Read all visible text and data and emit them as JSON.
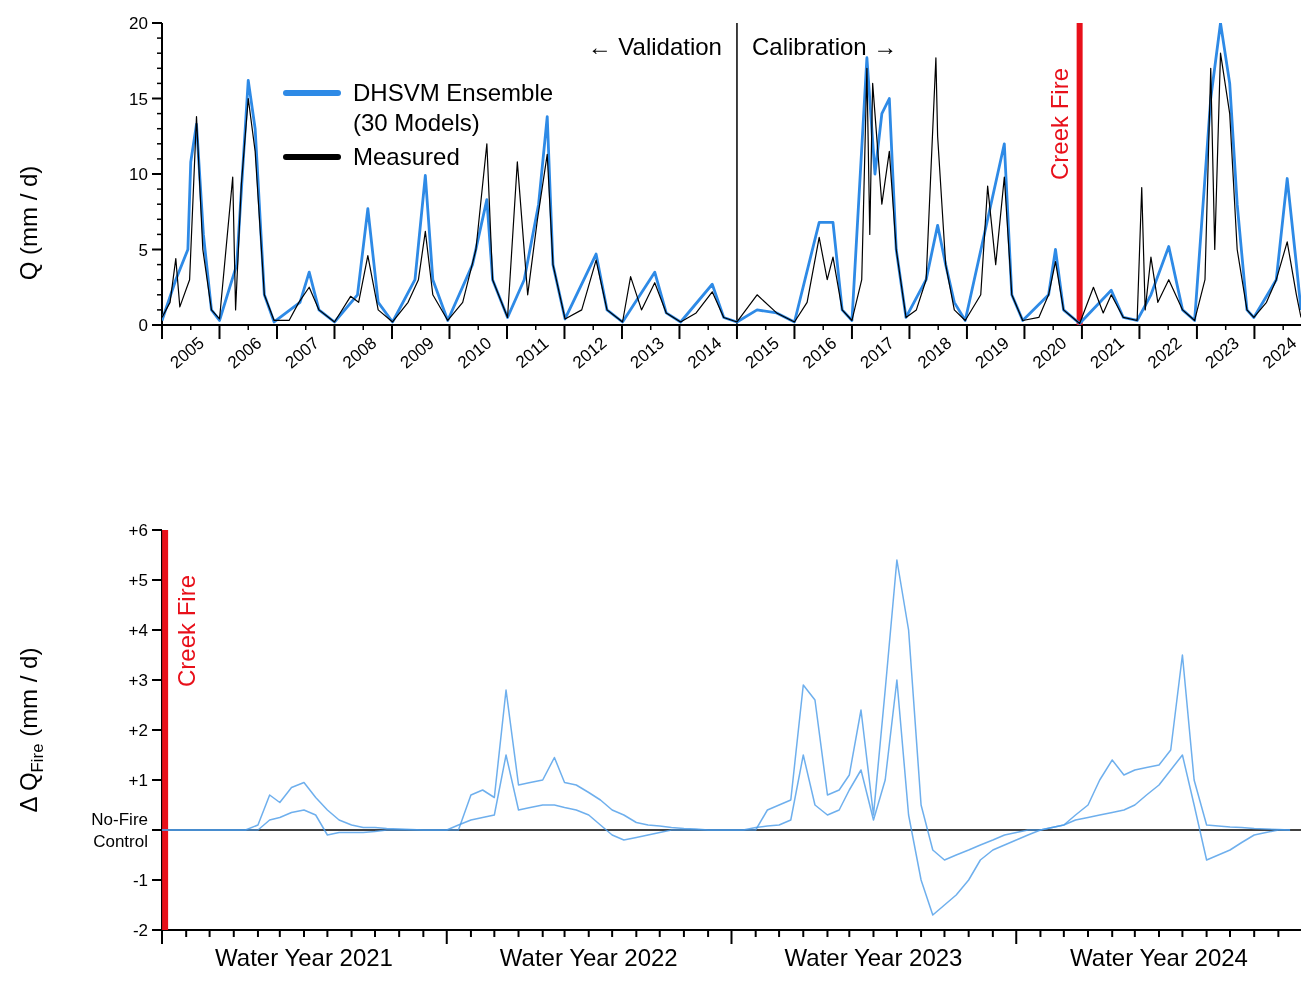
{
  "chart_data": [
    {
      "type": "line",
      "ylabel": "Q (mm / d)",
      "legend": "top left",
      "xlim": [
        2004.5,
        2024.31
      ],
      "ylim": [
        0,
        20
      ],
      "xticks": [
        {
          "value": 2004.5,
          "label": null
        },
        2005,
        {
          "value": 2005.5,
          "label": null
        },
        2006,
        {
          "value": 2006.5,
          "label": null
        },
        2007,
        {
          "value": 2007.5,
          "label": null
        },
        2008,
        {
          "value": 2008.5,
          "label": null
        },
        2009,
        {
          "value": 2009.5,
          "label": null
        },
        2010,
        {
          "value": 2010.5,
          "label": null
        },
        2011,
        {
          "value": 2011.5,
          "label": null
        },
        2012,
        {
          "value": 2012.5,
          "label": null
        },
        2013,
        {
          "value": 2013.5,
          "label": null
        },
        2014,
        {
          "value": 2014.5,
          "label": null
        },
        2015,
        {
          "value": 2015.5,
          "label": null
        },
        2016,
        {
          "value": 2016.5,
          "label": null
        },
        2017,
        {
          "value": 2017.5,
          "label": null
        },
        2018,
        {
          "value": 2018.5,
          "label": null
        },
        2019,
        {
          "value": 2019.5,
          "label": null
        },
        2020,
        {
          "value": 2020.5,
          "label": null
        },
        2021,
        {
          "value": 2021.5,
          "label": null
        },
        2022,
        {
          "value": 2022.5,
          "label": null
        },
        2023,
        {
          "value": 2023.5,
          "label": null
        },
        2024
      ],
      "yticks": [
        0,
        {
          "value": 1,
          "label": null
        },
        {
          "value": 2,
          "label": null
        },
        {
          "value": 3,
          "label": null
        },
        {
          "value": 4,
          "label": null
        },
        5,
        {
          "value": 6,
          "label": null
        },
        {
          "value": 7,
          "label": null
        },
        {
          "value": 8,
          "label": null
        },
        {
          "value": 9,
          "label": null
        },
        10,
        {
          "value": 11,
          "label": null
        },
        {
          "value": 12,
          "label": null
        },
        {
          "value": 13,
          "label": null
        },
        {
          "value": 14,
          "label": null
        },
        15,
        {
          "value": 16,
          "label": null
        },
        {
          "value": 17,
          "label": null
        },
        {
          "value": 18,
          "label": null
        },
        {
          "value": 19,
          "label": null
        },
        20
      ],
      "ref_lines": [
        {
          "axis": "x",
          "value": 2014.5,
          "label": null,
          "color": "#000000"
        },
        {
          "axis": "x",
          "value": 2020.46,
          "label": "Creek Fire",
          "color": "#e8101a"
        }
      ],
      "annotations": [
        "← Validation",
        "Calibration →"
      ],
      "series": [
        {
          "name": "DHSVM Ensemble (30 Models)",
          "color": "#2e8ae6",
          "x": [
            2004.5,
            2004.74,
            2004.95,
            2005.0,
            2005.1,
            2005.22,
            2005.36,
            2005.5,
            2005.8,
            2006.0,
            2006.12,
            2006.28,
            2006.45,
            2006.9,
            2007.06,
            2007.23,
            2007.5,
            2007.9,
            2008.08,
            2008.26,
            2008.51,
            2008.9,
            2009.08,
            2009.21,
            2009.47,
            2009.9,
            2010.15,
            2010.25,
            2010.51,
            2010.8,
            2011.05,
            2011.2,
            2011.3,
            2011.51,
            2012.05,
            2012.24,
            2012.51,
            2013.07,
            2013.27,
            2013.52,
            2014.07,
            2014.27,
            2014.5,
            2014.85,
            2015.19,
            2015.5,
            2015.93,
            2016.17,
            2016.33,
            2016.5,
            2016.76,
            2016.9,
            2017.02,
            2017.15,
            2017.27,
            2017.44,
            2017.79,
            2017.99,
            2018.13,
            2018.28,
            2018.47,
            2018.86,
            2019.15,
            2019.28,
            2019.47,
            2019.92,
            2020.04,
            2020.18,
            2020.46,
            2021.01,
            2021.22,
            2021.46,
            2021.7,
            2022.01,
            2022.25,
            2022.46,
            2022.74,
            2022.91,
            2023.07,
            2023.2,
            2023.37,
            2023.49,
            2023.88,
            2024.07,
            2024.23,
            2024.31
          ],
          "values": [
            0.3,
            3,
            5,
            10.8,
            13.3,
            6,
            1,
            0.3,
            4,
            16.2,
            13,
            2,
            0.2,
            1.5,
            3.5,
            1,
            0.2,
            2,
            7.7,
            1.5,
            0.2,
            3,
            9.9,
            3,
            0.3,
            4,
            8.3,
            3,
            0.5,
            3,
            8,
            13.8,
            4,
            0.4,
            4.7,
            1,
            0.2,
            3.5,
            0.8,
            0.2,
            2.7,
            0.5,
            0.2,
            1.0,
            0.8,
            0.2,
            6.8,
            6.8,
            1,
            0.3,
            17.7,
            10,
            14,
            15,
            5,
            0.5,
            3,
            6.6,
            4,
            1.5,
            0.3,
            7,
            12,
            2,
            0.3,
            2,
            5,
            1,
            0.1,
            2.3,
            0.5,
            0.3,
            2,
            5.2,
            1,
            0.3,
            15,
            20,
            16,
            8,
            1,
            0.5,
            3,
            9.7,
            4,
            1
          ]
        },
        {
          "name": "Measured",
          "color": "#000000",
          "x": [
            2004.5,
            2004.64,
            2004.74,
            2004.81,
            2004.98,
            2005.1,
            2005.21,
            2005.36,
            2005.5,
            2005.73,
            2005.78,
            2005.88,
            2006.0,
            2006.12,
            2006.28,
            2006.45,
            2006.71,
            2006.88,
            2007.06,
            2007.23,
            2007.5,
            2007.78,
            2007.92,
            2008.08,
            2008.26,
            2008.51,
            2008.78,
            2008.96,
            2009.08,
            2009.21,
            2009.47,
            2009.73,
            2009.96,
            2010.15,
            2010.25,
            2010.51,
            2010.68,
            2010.86,
            2011.03,
            2011.2,
            2011.3,
            2011.51,
            2011.8,
            2012.05,
            2012.24,
            2012.51,
            2012.65,
            2012.84,
            2013.07,
            2013.27,
            2013.52,
            2013.79,
            2014.07,
            2014.27,
            2014.5,
            2014.85,
            2015.19,
            2015.5,
            2015.72,
            2015.93,
            2016.07,
            2016.17,
            2016.33,
            2016.5,
            2016.67,
            2016.76,
            2016.81,
            2016.86,
            2017.02,
            2017.15,
            2017.27,
            2017.44,
            2017.62,
            2017.79,
            2017.96,
            2017.99,
            2018.13,
            2018.28,
            2018.47,
            2018.74,
            2018.86,
            2019.0,
            2019.15,
            2019.28,
            2019.47,
            2019.75,
            2019.92,
            2020.04,
            2020.18,
            2020.46,
            2020.7,
            2020.87,
            2021.01,
            2021.22,
            2021.46,
            2021.54,
            2021.6,
            2021.7,
            2021.82,
            2022.01,
            2022.25,
            2022.46,
            2022.64,
            2022.74,
            2022.81,
            2022.91,
            2023.07,
            2023.2,
            2023.37,
            2023.49,
            2023.71,
            2023.88,
            2024.07,
            2024.23,
            2024.31
          ],
          "values": [
            0.5,
            1.5,
            4.4,
            1.2,
            3,
            13.8,
            5,
            1.0,
            0.4,
            9.8,
            1,
            9.3,
            15,
            11.5,
            2,
            0.3,
            0.3,
            1.5,
            2.5,
            1.0,
            0.2,
            1.9,
            1.5,
            4.6,
            1.0,
            0.2,
            1.5,
            3,
            6.2,
            2,
            0.3,
            1.5,
            5,
            12,
            3,
            0.5,
            10.8,
            2,
            7,
            11.3,
            4,
            0.4,
            1.0,
            4.3,
            1.0,
            0.2,
            3.2,
            1.0,
            2.8,
            0.8,
            0.2,
            0.8,
            2.2,
            0.5,
            0.2,
            2.0,
            0.8,
            0.2,
            1.5,
            5.8,
            3.0,
            4.5,
            1.0,
            0.3,
            3,
            17,
            6,
            16,
            8,
            11.5,
            5,
            0.5,
            1.0,
            3,
            17.7,
            12.5,
            4,
            1,
            0.3,
            2,
            9.2,
            4,
            9.8,
            2,
            0.3,
            0.5,
            2,
            4.2,
            1.0,
            0.1,
            2.5,
            0.8,
            2.0,
            0.5,
            0.3,
            9.1,
            1,
            4.5,
            1.5,
            3,
            1.0,
            0.3,
            3,
            17,
            5,
            18,
            14,
            5,
            1.0,
            0.5,
            1.5,
            3,
            5.5,
            2,
            0.5
          ]
        }
      ]
    },
    {
      "type": "line",
      "ylabel": "Δ Q$_{Fire}$ (mm / d)",
      "xlim": [
        "2020-10-01",
        "2024-09-30"
      ],
      "ylim": [
        -2,
        6
      ],
      "x": [
        "2020-10-01",
        "2020-10-16",
        "2020-11-01",
        "2020-11-16",
        "2020-12-01",
        "2020-12-16",
        "2021-01-01",
        "2021-01-16",
        "2021-02-01",
        "2021-02-16",
        "2021-03-01",
        "2021-03-16",
        "2021-04-01",
        "2021-04-16",
        "2021-05-01",
        "2021-05-16",
        "2021-06-01",
        "2021-06-16",
        "2021-07-01",
        "2021-07-16",
        "2021-08-01",
        "2021-08-16",
        "2021-09-01",
        "2021-09-16",
        "2021-10-01",
        "2021-10-16",
        "2021-11-01",
        "2021-11-16",
        "2021-12-01",
        "2021-12-16",
        "2022-01-01",
        "2022-01-16",
        "2022-02-01",
        "2022-02-16",
        "2022-03-01",
        "2022-03-16",
        "2022-04-01",
        "2022-04-16",
        "2022-05-01",
        "2022-05-16",
        "2022-06-01",
        "2022-06-16",
        "2022-07-01",
        "2022-07-16",
        "2022-08-01",
        "2022-08-16",
        "2022-09-01",
        "2022-09-16",
        "2022-10-01",
        "2022-10-16",
        "2022-11-01",
        "2022-11-16",
        "2022-12-01",
        "2022-12-16",
        "2023-01-01",
        "2023-01-16",
        "2023-02-01",
        "2023-02-16",
        "2023-03-01",
        "2023-03-16",
        "2023-04-01",
        "2023-04-16",
        "2023-05-01",
        "2023-05-16",
        "2023-06-01",
        "2023-06-16",
        "2023-07-01",
        "2023-07-16",
        "2023-08-01",
        "2023-08-16",
        "2023-09-01",
        "2023-09-16",
        "2023-10-01",
        "2023-10-16",
        "2023-11-01",
        "2023-11-16",
        "2023-12-01",
        "2023-12-16",
        "2024-01-01",
        "2024-01-16",
        "2024-02-01",
        "2024-02-16",
        "2024-03-01",
        "2024-03-16",
        "2024-04-01",
        "2024-04-16",
        "2024-05-01",
        "2024-05-16",
        "2024-06-01",
        "2024-06-16",
        "2024-07-01",
        "2024-07-16",
        "2024-08-01",
        "2024-08-16",
        "2024-09-01",
        "2024-09-16"
      ],
      "xticks": [
        {
          "value": "2020-10-01",
          "label": null
        },
        {
          "value": "2020-11-01",
          "label": null
        },
        {
          "value": "2020-12-01",
          "label": null
        },
        {
          "value": "2021-01-01",
          "label": null
        },
        {
          "value": "2021-02-01",
          "label": null
        },
        {
          "value": "2021-03-01",
          "label": null
        },
        {
          "value": "2021-04-01",
          "label": "Water Year 2021"
        },
        {
          "value": "2021-05-01",
          "label": null
        },
        {
          "value": "2021-06-01",
          "label": null
        },
        {
          "value": "2021-07-01",
          "label": null
        },
        {
          "value": "2021-08-01",
          "label": null
        },
        {
          "value": "2021-09-01",
          "label": null
        },
        {
          "value": "2021-10-01",
          "label": null
        },
        {
          "value": "2021-11-01",
          "label": null
        },
        {
          "value": "2021-12-01",
          "label": null
        },
        {
          "value": "2022-01-01",
          "label": null
        },
        {
          "value": "2022-02-01",
          "label": null
        },
        {
          "value": "2022-03-01",
          "label": null
        },
        {
          "value": "2022-04-01",
          "label": "Water Year 2022"
        },
        {
          "value": "2022-05-01",
          "label": null
        },
        {
          "value": "2022-06-01",
          "label": null
        },
        {
          "value": "2022-07-01",
          "label": null
        },
        {
          "value": "2022-08-01",
          "label": null
        },
        {
          "value": "2022-09-01",
          "label": null
        },
        {
          "value": "2022-10-01",
          "label": null
        },
        {
          "value": "2022-11-01",
          "label": null
        },
        {
          "value": "2022-12-01",
          "label": null
        },
        {
          "value": "2023-01-01",
          "label": null
        },
        {
          "value": "2023-02-01",
          "label": null
        },
        {
          "value": "2023-03-01",
          "label": null
        },
        {
          "value": "2023-04-01",
          "label": "Water Year 2023"
        },
        {
          "value": "2023-05-01",
          "label": null
        },
        {
          "value": "2023-06-01",
          "label": null
        },
        {
          "value": "2023-07-01",
          "label": null
        },
        {
          "value": "2023-08-01",
          "label": null
        },
        {
          "value": "2023-09-01",
          "label": null
        },
        {
          "value": "2023-10-01",
          "label": null
        },
        {
          "value": "2023-11-01",
          "label": null
        },
        {
          "value": "2023-12-01",
          "label": null
        },
        {
          "value": "2024-01-01",
          "label": null
        },
        {
          "value": "2024-02-01",
          "label": null
        },
        {
          "value": "2024-03-01",
          "label": null
        },
        {
          "value": "2024-04-01",
          "label": "Water Year 2024"
        },
        {
          "value": "2024-05-01",
          "label": null
        },
        {
          "value": "2024-06-01",
          "label": null
        },
        {
          "value": "2024-07-01",
          "label": null
        },
        {
          "value": "2024-08-01",
          "label": null
        },
        {
          "value": "2024-09-01",
          "label": null
        }
      ],
      "yticks": [
        -2,
        -1,
        {
          "value": 0,
          "label": "No-Fire Control"
        },
        {
          "value": 1,
          "label": "+1"
        },
        {
          "value": 2,
          "label": "+2"
        },
        {
          "value": 3,
          "label": "+3"
        },
        {
          "value": 4,
          "label": "+4"
        },
        {
          "value": 5,
          "label": "+5"
        },
        {
          "value": 6,
          "label": "+6"
        }
      ],
      "ref_lines": [
        {
          "axis": "y",
          "value": 0,
          "label": null,
          "color": "#000000"
        },
        {
          "axis": "x",
          "value": "2020-10-05",
          "label": "Creek Fire",
          "color": "#e8101a"
        }
      ],
      "series": [
        {
          "color": "#4a9be8",
          "values": [
            0,
            0,
            0,
            0,
            0,
            0,
            0,
            0,
            0.1,
            0.7,
            0.55,
            0.85,
            0.95,
            0.65,
            0.4,
            0.2,
            0.1,
            0.05,
            0.05,
            0.03,
            0.02,
            0.01,
            0,
            0,
            0,
            0,
            0.7,
            0.8,
            0.65,
            2.8,
            0.9,
            0.95,
            1.0,
            1.45,
            0.95,
            0.9,
            0.75,
            0.6,
            0.4,
            0.3,
            0.15,
            0.1,
            0.08,
            0.05,
            0.03,
            0.02,
            0,
            0,
            0,
            0,
            0,
            0.4,
            0.5,
            0.6,
            2.9,
            2.6,
            0.7,
            0.8,
            1.1,
            2.4,
            0.3,
            2.8,
            5.4,
            4.0,
            0.5,
            -0.4,
            -0.6,
            -0.5,
            -0.4,
            -0.3,
            -0.2,
            -0.1,
            -0.05,
            0,
            0,
            0.05,
            0.1,
            0.3,
            0.5,
            1.0,
            1.4,
            1.1,
            1.2,
            1.25,
            1.3,
            1.6,
            3.5,
            1.0,
            0.1,
            0.08,
            0.06,
            0.05,
            0.03,
            0.02,
            0.01,
            0
          ]
        },
        {
          "color": "#4a9be8",
          "values": [
            0,
            0,
            0,
            0,
            0,
            0,
            0,
            0,
            0,
            0.2,
            0.25,
            0.35,
            0.4,
            0.3,
            -0.1,
            -0.05,
            -0.05,
            -0.05,
            -0.03,
            0,
            0,
            0,
            0,
            0,
            0,
            0.1,
            0.2,
            0.25,
            0.3,
            1.5,
            0.4,
            0.45,
            0.5,
            0.5,
            0.45,
            0.4,
            0.3,
            0.1,
            -0.1,
            -0.2,
            -0.15,
            -0.1,
            -0.05,
            0,
            0,
            0,
            0,
            0,
            0,
            0,
            0.05,
            0.08,
            0.1,
            0.2,
            1.5,
            0.5,
            0.3,
            0.4,
            0.8,
            1.2,
            0.2,
            1.0,
            3.0,
            0.3,
            -1.0,
            -1.7,
            -1.5,
            -1.3,
            -1.0,
            -0.6,
            -0.4,
            -0.3,
            -0.2,
            -0.1,
            0,
            0.05,
            0.1,
            0.2,
            0.25,
            0.3,
            0.35,
            0.4,
            0.5,
            0.7,
            0.9,
            1.2,
            1.5,
            0.5,
            -0.6,
            -0.5,
            -0.4,
            -0.25,
            -0.1,
            -0.05,
            0,
            0
          ]
        }
      ]
    }
  ]
}
